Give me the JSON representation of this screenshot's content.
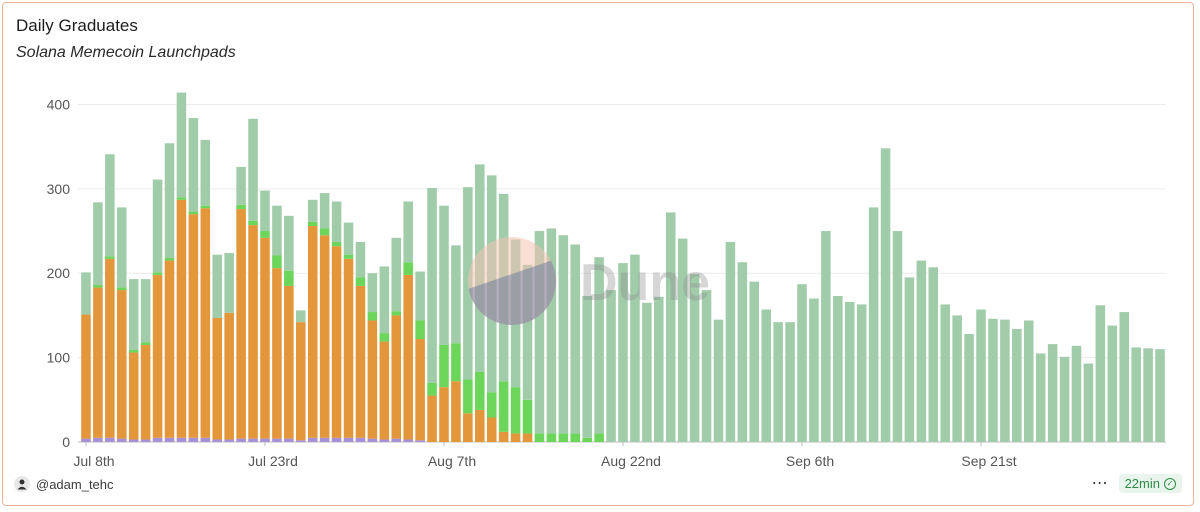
{
  "header": {
    "title": "Daily Graduates",
    "subtitle": "Solana Memecoin Launchpads"
  },
  "footer": {
    "username": "@adam_tehc",
    "more_label": "⋯",
    "refresh_label": "22min",
    "avatar_icon": "avatar-icon",
    "check_icon": "check-circle-icon"
  },
  "watermark": {
    "text": "Dune"
  },
  "colors": {
    "orange": "#e3963a",
    "green": "#a1ccaa",
    "bright_green": "#6bd65a",
    "black": "#1c1c1c",
    "pink": "#e9a3c1",
    "purple": "#a690d6",
    "yellow": "#f2d27a",
    "grid": "#ececec",
    "axis_text": "#555555"
  },
  "chart_data": {
    "type": "bar",
    "stacked": true,
    "title": "Daily Graduates",
    "subtitle": "Solana Memecoin Launchpads",
    "ylim": [
      0,
      410
    ],
    "yticks": [
      0,
      100,
      200,
      300,
      400
    ],
    "x_tick_labels": [
      {
        "index": 0,
        "label": "Jul 8th"
      },
      {
        "index": 15,
        "label": "Jul 23rd"
      },
      {
        "index": 30,
        "label": "Aug 7th"
      },
      {
        "index": 45,
        "label": "Aug 22nd"
      },
      {
        "index": 60,
        "label": "Sep 6th"
      },
      {
        "index": 75,
        "label": "Sep 21st"
      }
    ],
    "n_days": 91,
    "totals": [
      201,
      284,
      341,
      278,
      193,
      193,
      311,
      354,
      414,
      384,
      358,
      222,
      224,
      326,
      383,
      298,
      280,
      268,
      156,
      287,
      295,
      285,
      260,
      237,
      200,
      208,
      242,
      285,
      202,
      301,
      280,
      233,
      302,
      329,
      316,
      294,
      240,
      210,
      250,
      253,
      245,
      234,
      173,
      219,
      180,
      212,
      222,
      165,
      172,
      272,
      241,
      199,
      180,
      145,
      237,
      213,
      190,
      157,
      142,
      142,
      187,
      170,
      250,
      173,
      166,
      163,
      278,
      348,
      250,
      195,
      215,
      207,
      163,
      150,
      128,
      157,
      146,
      145,
      134,
      144,
      105,
      116,
      101,
      114,
      93,
      162,
      138,
      154,
      112,
      111,
      110
    ],
    "series": [
      {
        "name": "purple",
        "color": "#a690d6",
        "values": [
          4,
          5,
          5,
          4,
          3,
          3,
          5,
          5,
          5,
          5,
          5,
          3,
          3,
          4,
          4,
          4,
          4,
          4,
          2,
          5,
          5,
          5,
          5,
          5,
          4,
          3,
          4,
          3,
          2,
          0,
          0,
          0,
          0,
          0,
          0,
          0,
          0,
          0,
          0,
          0,
          0,
          0,
          0,
          0,
          0,
          0,
          0,
          0,
          0,
          0,
          0,
          0,
          0,
          0,
          0,
          0,
          0,
          0,
          0,
          0,
          0,
          0,
          0,
          0,
          0,
          0,
          0,
          0,
          0,
          0,
          0,
          0,
          0,
          0,
          0,
          0,
          0,
          0,
          0,
          0,
          0,
          0,
          0,
          0,
          0,
          0,
          0,
          0,
          0,
          0,
          0
        ]
      },
      {
        "name": "black",
        "color": "#1c1c1c",
        "values": [
          0,
          0,
          0,
          0,
          0,
          0,
          0,
          0,
          0,
          0,
          0,
          0,
          0,
          0,
          0,
          0,
          0,
          0,
          0,
          0,
          0,
          0,
          0,
          0,
          0,
          0,
          0,
          0,
          0,
          0,
          0,
          0,
          0,
          0,
          0,
          0,
          0,
          0,
          0,
          0,
          0,
          0,
          0,
          0,
          0,
          0,
          0,
          0,
          0,
          0,
          0,
          0,
          0,
          0,
          0,
          0,
          0,
          0,
          0,
          0,
          0,
          0,
          0,
          0,
          0,
          0,
          0,
          0,
          0,
          0,
          0,
          0,
          0,
          0,
          0,
          0,
          0,
          0,
          0,
          0,
          0,
          0,
          0,
          0,
          0,
          0,
          0,
          0,
          0,
          0,
          0
        ]
      },
      {
        "name": "orange",
        "color": "#e3963a",
        "values": [
          147,
          178,
          212,
          176,
          103,
          112,
          193,
          210,
          282,
          265,
          272,
          144,
          150,
          272,
          253,
          238,
          202,
          181,
          140,
          251,
          240,
          227,
          212,
          180,
          140,
          116,
          146,
          195,
          120,
          55,
          65,
          72,
          34,
          38,
          29,
          12,
          10,
          10,
          0,
          0,
          0,
          0,
          0,
          0,
          0,
          0,
          0,
          0,
          0,
          0,
          0,
          0,
          0,
          0,
          0,
          0,
          0,
          0,
          0,
          0,
          0,
          0,
          0,
          0,
          0,
          0,
          0,
          0,
          0,
          0,
          0,
          0,
          0,
          0,
          0,
          0,
          0,
          0,
          0,
          0,
          0,
          0,
          0,
          0,
          0,
          0,
          0,
          0,
          0,
          0,
          0
        ]
      },
      {
        "name": "bright_green",
        "color": "#6bd65a",
        "values": [
          0,
          3,
          3,
          3,
          3,
          3,
          3,
          3,
          3,
          3,
          3,
          0,
          0,
          5,
          5,
          8,
          15,
          18,
          0,
          5,
          8,
          5,
          5,
          10,
          10,
          10,
          5,
          15,
          22,
          15,
          50,
          45,
          40,
          45,
          30,
          60,
          55,
          40,
          10,
          10,
          10,
          10,
          5,
          10,
          0,
          0,
          0,
          0,
          0,
          0,
          0,
          0,
          0,
          0,
          0,
          0,
          0,
          0,
          0,
          0,
          0,
          0,
          0,
          0,
          0,
          0,
          0,
          0,
          0,
          0,
          0,
          0,
          0,
          0,
          0,
          0,
          0,
          0,
          0,
          0,
          0,
          0,
          0,
          0,
          0,
          0,
          0,
          0,
          0,
          0,
          0
        ]
      },
      {
        "name": "pink",
        "color": "#e9a3c1",
        "values": [
          0,
          0,
          0,
          0,
          0,
          0,
          0,
          0,
          0,
          0,
          0,
          0,
          0,
          0,
          0,
          0,
          0,
          0,
          0,
          0,
          0,
          0,
          0,
          0,
          0,
          0,
          0,
          0,
          0,
          0,
          0,
          0,
          0,
          0,
          0,
          0,
          0,
          0,
          0,
          0,
          0,
          0,
          0,
          0,
          0,
          0,
          0,
          0,
          0,
          0,
          0,
          0,
          0,
          0,
          0,
          0,
          0,
          0,
          0,
          0,
          0,
          0,
          0,
          0,
          0,
          0,
          0,
          0,
          0,
          0,
          0,
          0,
          0,
          0,
          0,
          0,
          0,
          0,
          0,
          0,
          0,
          0,
          0,
          0,
          0,
          0,
          0,
          0,
          0,
          0,
          0
        ]
      },
      {
        "name": "green",
        "color": "#a1ccaa",
        "values": [
          50,
          98,
          121,
          95,
          84,
          75,
          110,
          136,
          124,
          111,
          78,
          75,
          71,
          45,
          121,
          48,
          59,
          65,
          14,
          26,
          42,
          48,
          38,
          42,
          46,
          79,
          87,
          72,
          58,
          231,
          165,
          116,
          228,
          246,
          257,
          222,
          175,
          160,
          240,
          243,
          235,
          224,
          168,
          209,
          180,
          212,
          222,
          165,
          172,
          272,
          241,
          199,
          180,
          145,
          237,
          213,
          190,
          157,
          142,
          142,
          187,
          170,
          250,
          173,
          166,
          163,
          278,
          348,
          250,
          195,
          215,
          207,
          163,
          150,
          128,
          157,
          146,
          145,
          134,
          144,
          105,
          116,
          101,
          114,
          93,
          162,
          138,
          154,
          112,
          111,
          110
        ]
      }
    ]
  }
}
